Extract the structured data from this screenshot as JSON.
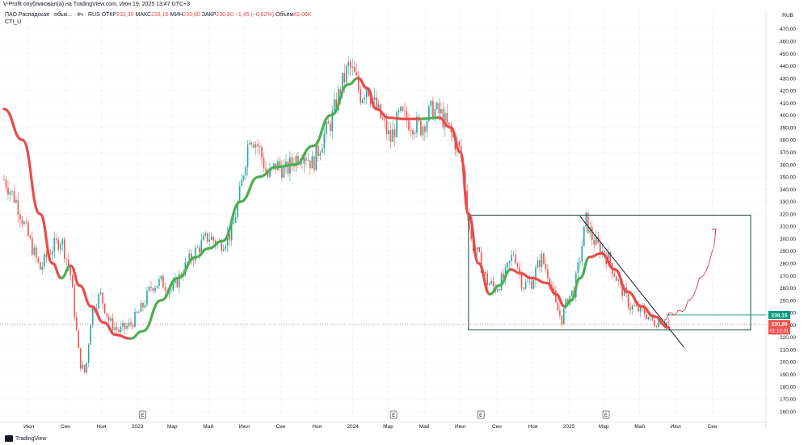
{
  "header": {
    "publisher": "V-Profit опубликовал(а) на TradingView.com, Июн 19, 2025 13:47 UTC+3"
  },
  "legend": {
    "symbol": "ПАО Распадская · обык... · 4ч · RUS",
    "open_label": "ОТКР",
    "open": "232,30",
    "high_label": "МАКС",
    "high": "233,15",
    "low_label": "МИН",
    "low": "230,60",
    "close_label": "ЗАКР",
    "close": "230,80",
    "change": "−1,45 (−0,62%)",
    "volume_label": "Объём",
    "volume": "42,06K",
    "indicator": "CTI_U"
  },
  "footer": {
    "brand": "TradingView"
  },
  "colors": {
    "up": "#26a69a",
    "down": "#ef5350",
    "cti_up": "#4caf50",
    "cti_down": "#e94b4b",
    "box": "#1e4d3b",
    "level": "#089981",
    "arrow": "#e0475b",
    "grid": "#f0f3fa"
  },
  "chart_data": {
    "type": "candlestick",
    "currency": "RUB",
    "ylim": [
      155,
      477
    ],
    "y_ticks": [
      160,
      170,
      180,
      190,
      200,
      210,
      220,
      230,
      240,
      250,
      260,
      270,
      280,
      290,
      300,
      310,
      320,
      330,
      340,
      350,
      360,
      370,
      380,
      390,
      400,
      410,
      420,
      430,
      440,
      450,
      460,
      470
    ],
    "x_ticks": [
      "Июл",
      "Сен",
      "Ноя",
      "2023",
      "Мар",
      "Май",
      "Июл",
      "Сен",
      "Ноя",
      "2024",
      "Мар",
      "Май",
      "Июл",
      "Сен",
      "Ноя",
      "2025",
      "Мар",
      "Май",
      "Июл",
      "Сен"
    ],
    "x_tick_dates": [
      "2022-07",
      "2022-09",
      "2022-11",
      "2023-01",
      "2023-03",
      "2023-05",
      "2023-07",
      "2023-09",
      "2023-11",
      "2024-01",
      "2024-03",
      "2024-05",
      "2024-07",
      "2024-09",
      "2024-11",
      "2025-01",
      "2025-03",
      "2025-05",
      "2025-07",
      "2025-09"
    ],
    "price_path": [
      [
        "2022-05-20",
        348
      ],
      [
        "2022-06-10",
        330
      ],
      [
        "2022-07-01",
        300
      ],
      [
        "2022-07-20",
        275
      ],
      [
        "2022-08-05",
        290
      ],
      [
        "2022-08-25",
        300
      ],
      [
        "2022-09-10",
        270
      ],
      [
        "2022-09-25",
        200
      ],
      [
        "2022-10-05",
        190
      ],
      [
        "2022-10-15",
        240
      ],
      [
        "2022-10-30",
        255
      ],
      [
        "2022-11-15",
        232
      ],
      [
        "2022-12-01",
        225
      ],
      [
        "2022-12-20",
        230
      ],
      [
        "2023-01-10",
        245
      ],
      [
        "2023-01-25",
        262
      ],
      [
        "2023-02-10",
        265
      ],
      [
        "2023-03-01",
        258
      ],
      [
        "2023-03-20",
        275
      ],
      [
        "2023-04-10",
        290
      ],
      [
        "2023-05-01",
        302
      ],
      [
        "2023-05-20",
        295
      ],
      [
        "2023-06-10",
        305
      ],
      [
        "2023-06-25",
        340
      ],
      [
        "2023-07-10",
        385
      ],
      [
        "2023-07-25",
        375
      ],
      [
        "2023-08-10",
        350
      ],
      [
        "2023-08-25",
        360
      ],
      [
        "2023-09-10",
        355
      ],
      [
        "2023-09-25",
        365
      ],
      [
        "2023-10-10",
        370
      ],
      [
        "2023-10-25",
        360
      ],
      [
        "2023-11-10",
        380
      ],
      [
        "2023-11-25",
        395
      ],
      [
        "2023-12-10",
        420
      ],
      [
        "2023-12-25",
        440
      ],
      [
        "2024-01-05",
        430
      ],
      [
        "2024-01-15",
        415
      ],
      [
        "2024-01-25",
        425
      ],
      [
        "2024-02-05",
        410
      ],
      [
        "2024-02-20",
        395
      ],
      [
        "2024-03-05",
        380
      ],
      [
        "2024-03-20",
        400
      ],
      [
        "2024-04-05",
        395
      ],
      [
        "2024-04-25",
        390
      ],
      [
        "2024-05-15",
        405
      ],
      [
        "2024-05-30",
        400
      ],
      [
        "2024-06-15",
        385
      ],
      [
        "2024-07-01",
        370
      ],
      [
        "2024-07-10",
        340
      ],
      [
        "2024-07-18",
        300
      ],
      [
        "2024-08-01",
        285
      ],
      [
        "2024-08-15",
        265
      ],
      [
        "2024-08-30",
        260
      ],
      [
        "2024-09-15",
        270
      ],
      [
        "2024-09-30",
        290
      ],
      [
        "2024-10-15",
        262
      ],
      [
        "2024-10-30",
        265
      ],
      [
        "2024-11-15",
        285
      ],
      [
        "2024-11-30",
        268
      ],
      [
        "2024-12-10",
        245
      ],
      [
        "2024-12-20",
        235
      ],
      [
        "2024-12-31",
        252
      ],
      [
        "2025-01-10",
        258
      ],
      [
        "2025-01-20",
        285
      ],
      [
        "2025-01-30",
        315
      ],
      [
        "2025-02-10",
        300
      ],
      [
        "2025-02-25",
        290
      ],
      [
        "2025-03-10",
        283
      ],
      [
        "2025-03-25",
        265
      ],
      [
        "2025-04-05",
        255
      ],
      [
        "2025-04-15",
        245
      ],
      [
        "2025-04-25",
        243
      ],
      [
        "2025-05-10",
        240
      ],
      [
        "2025-05-25",
        232
      ],
      [
        "2025-06-05",
        235
      ],
      [
        "2025-06-19",
        231
      ]
    ],
    "cti_path": [
      [
        "2022-05-20",
        405,
        "down"
      ],
      [
        "2022-06-20",
        380,
        "down"
      ],
      [
        "2022-07-20",
        320,
        "down"
      ],
      [
        "2022-08-10",
        280,
        "down"
      ],
      [
        "2022-08-25",
        268,
        "down"
      ],
      [
        "2022-09-10",
        278,
        "up"
      ],
      [
        "2022-09-25",
        262,
        "down"
      ],
      [
        "2022-10-15",
        245,
        "down"
      ],
      [
        "2022-11-05",
        232,
        "down"
      ],
      [
        "2022-11-25",
        222,
        "down"
      ],
      [
        "2022-12-20",
        219,
        "down"
      ],
      [
        "2023-01-10",
        225,
        "up"
      ],
      [
        "2023-02-10",
        250,
        "up"
      ],
      [
        "2023-03-10",
        268,
        "up"
      ],
      [
        "2023-04-10",
        285,
        "up"
      ],
      [
        "2023-05-01",
        292,
        "up"
      ],
      [
        "2023-05-25",
        298,
        "up"
      ],
      [
        "2023-06-25",
        330,
        "up"
      ],
      [
        "2023-07-25",
        350,
        "up"
      ],
      [
        "2023-08-25",
        358,
        "up"
      ],
      [
        "2023-09-25",
        360,
        "up"
      ],
      [
        "2023-10-25",
        375,
        "up"
      ],
      [
        "2023-11-25",
        400,
        "up"
      ],
      [
        "2023-12-25",
        425,
        "up"
      ],
      [
        "2024-01-10",
        430,
        "up"
      ],
      [
        "2024-01-25",
        422,
        "down"
      ],
      [
        "2024-02-10",
        405,
        "down"
      ],
      [
        "2024-03-01",
        398,
        "down"
      ],
      [
        "2024-03-25",
        397,
        "down"
      ],
      [
        "2024-04-25",
        397,
        "down"
      ],
      [
        "2024-05-25",
        398,
        "up"
      ],
      [
        "2024-06-15",
        390,
        "down"
      ],
      [
        "2024-07-01",
        370,
        "down"
      ],
      [
        "2024-07-15",
        320,
        "down"
      ],
      [
        "2024-08-01",
        280,
        "down"
      ],
      [
        "2024-08-20",
        255,
        "down"
      ],
      [
        "2024-09-05",
        262,
        "up"
      ],
      [
        "2024-09-25",
        275,
        "up"
      ],
      [
        "2024-10-10",
        272,
        "down"
      ],
      [
        "2024-10-30",
        268,
        "down"
      ],
      [
        "2024-11-25",
        264,
        "down"
      ],
      [
        "2024-12-10",
        255,
        "down"
      ],
      [
        "2024-12-25",
        245,
        "down"
      ],
      [
        "2025-01-05",
        250,
        "up"
      ],
      [
        "2025-01-20",
        268,
        "up"
      ],
      [
        "2025-02-05",
        285,
        "up"
      ],
      [
        "2025-02-25",
        288,
        "down"
      ],
      [
        "2025-03-20",
        275,
        "down"
      ],
      [
        "2025-04-10",
        257,
        "down"
      ],
      [
        "2025-05-05",
        245,
        "down"
      ],
      [
        "2025-05-25",
        237,
        "down"
      ],
      [
        "2025-06-19",
        228,
        "down"
      ]
    ],
    "box": {
      "x0": "2024-07-15",
      "x1": "2025-11-05",
      "y0": 226,
      "y1": 319
    },
    "trendline": {
      "x0": "2025-01-20",
      "y0": 318,
      "x1": "2025-07-15",
      "y1": 212
    },
    "level": {
      "x0": "2025-06-15",
      "y": 238.15
    },
    "arrow_path": [
      [
        "2025-06-12",
        234
      ],
      [
        "2025-06-20",
        240
      ],
      [
        "2025-06-28",
        238
      ],
      [
        "2025-07-05",
        242
      ],
      [
        "2025-07-12",
        241
      ],
      [
        "2025-07-22",
        250
      ],
      [
        "2025-08-10",
        268
      ],
      [
        "2025-09-01",
        290
      ],
      [
        "2025-09-07",
        308
      ]
    ],
    "labels": [
      {
        "text": "238,15",
        "value": 238.15,
        "color": "#089981"
      },
      {
        "text": "230,80",
        "sub": "01:12:31",
        "value": 230.8,
        "color": "#ef5350"
      }
    ],
    "earnings_markers": [
      "2023-01-10",
      "2024-03-10",
      "2024-08-05",
      "2025-03-05"
    ],
    "earnings_label": "E"
  }
}
